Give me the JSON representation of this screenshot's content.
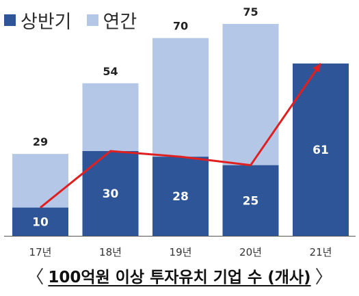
{
  "legend": {
    "half_label": "상반기",
    "annual_label": "연간"
  },
  "caption": {
    "left_bracket": "〈",
    "title": "100억원 이상 투자유치 기업 수 (개사)",
    "right_bracket": "〉"
  },
  "colors": {
    "half": "#2E5597",
    "annual": "#B4C7E7",
    "line": "#E02020"
  },
  "chart_data": {
    "type": "bar",
    "title": "100억원 이상 투자유치 기업 수 (개사)",
    "categories": [
      "17년",
      "18년",
      "19년",
      "20년",
      "21년"
    ],
    "series": [
      {
        "name": "상반기",
        "values": [
          10,
          30,
          28,
          25,
          61
        ]
      },
      {
        "name": "연간",
        "values": [
          29,
          54,
          70,
          75,
          null
        ]
      }
    ],
    "overlay_line": {
      "series": "상반기",
      "color": "#E02020"
    },
    "ylim": [
      0,
      80
    ],
    "grid": false,
    "legend_position": "top-left"
  }
}
